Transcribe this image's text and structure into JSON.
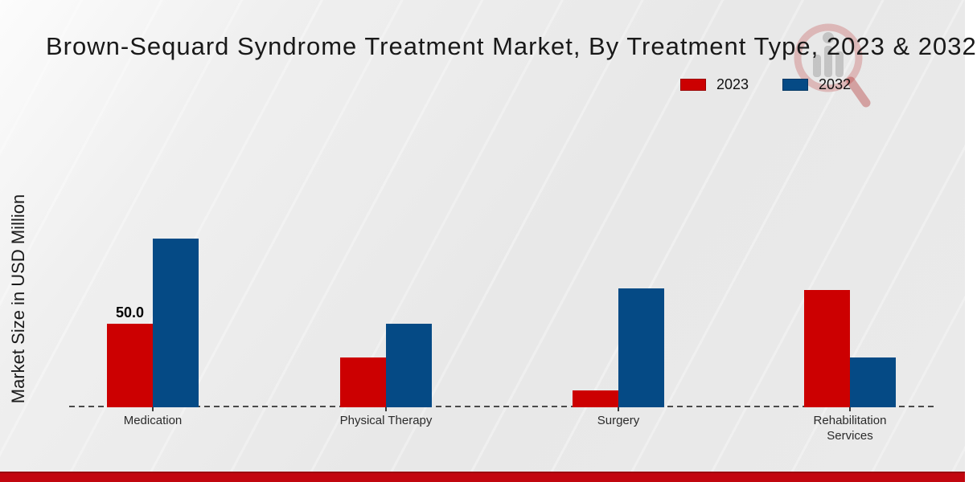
{
  "chart_data": {
    "type": "bar",
    "title": "Brown-Sequard Syndrome Treatment Market, By Treatment Type, 2023 & 2032",
    "xlabel": "",
    "ylabel": "Market Size in USD Million",
    "categories": [
      "Medication",
      "Physical Therapy",
      "Surgery",
      "Rehabilitation Services"
    ],
    "series": [
      {
        "name": "2023",
        "color": "#cc0001",
        "values": [
          50.0,
          30,
          10,
          70
        ]
      },
      {
        "name": "2032",
        "color": "#054a85",
        "values": [
          101,
          50,
          71,
          30
        ]
      }
    ],
    "bar_value_labels": [
      {
        "series_index": 0,
        "category_index": 0,
        "text": "50.0"
      }
    ],
    "ylim": [
      0,
      170
    ],
    "grid": false,
    "legend_position": "top-right",
    "baseline_style": "dashed"
  },
  "watermark": {
    "icon": "magnifier-bar-chart-logo"
  },
  "footer": {
    "strip_color": "#c2060f"
  }
}
